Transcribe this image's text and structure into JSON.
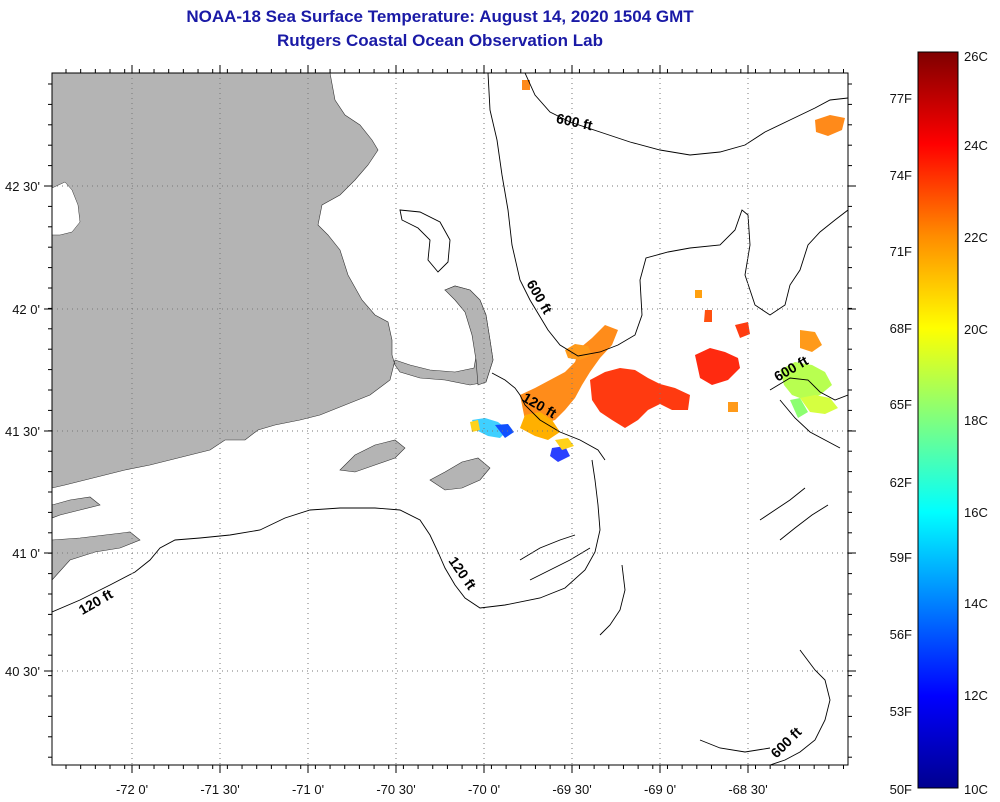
{
  "header": {
    "title": "NOAA-18 Sea Surface Temperature:  August 14, 2020 1504 GMT",
    "subtitle": "Rutgers Coastal Ocean Observation Lab"
  },
  "axes": {
    "lon_labels": [
      "-72 0'",
      "-71 30'",
      "-71 0'",
      "-70 30'",
      "-70 0'",
      "-69 30'",
      "-69 0'",
      "-68 30'"
    ],
    "lat_labels": [
      "42 30'",
      "42 0'",
      "41 30'",
      "41 0'",
      "40 30'"
    ]
  },
  "contours": {
    "label_600": "600 ft",
    "label_120": "120 ft"
  },
  "colorbar": {
    "celsius": [
      "26C",
      "24C",
      "22C",
      "20C",
      "18C",
      "16C",
      "14C",
      "12C",
      "10C"
    ],
    "fahrenheit": [
      "77F",
      "74F",
      "71F",
      "68F",
      "65F",
      "62F",
      "59F",
      "56F",
      "53F",
      "50F"
    ],
    "colors": [
      "#7f0000",
      "#ff0000",
      "#ff8c00",
      "#ffff00",
      "#7fff7f",
      "#00ffff",
      "#0080ff",
      "#0000ff",
      "#00008f"
    ]
  },
  "colors": {
    "land": "#b4b4b4",
    "title_blue": "#1a1aa6",
    "grid": "#555555"
  }
}
